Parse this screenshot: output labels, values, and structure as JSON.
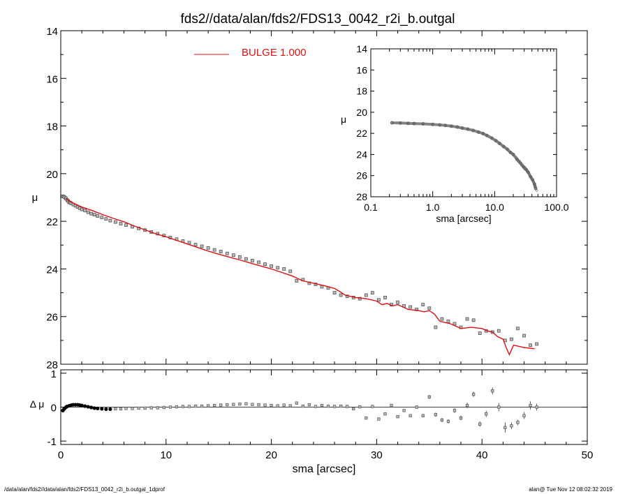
{
  "chart_data": [
    {
      "id": "main",
      "type": "scatter",
      "title": "fds2//data/alan/fds2/FDS13_0042_r2i_b.outgal",
      "xlabel": "",
      "ylabel": "μ",
      "xlim": [
        0,
        50
      ],
      "ylim": [
        28,
        14
      ],
      "y_inverted": true,
      "yticks": [
        14,
        16,
        18,
        20,
        22,
        24,
        26,
        28
      ],
      "legend": {
        "label": "BULGE  1.000",
        "placement": "top-center",
        "color": "#dd1111"
      },
      "series": [
        {
          "name": "data",
          "style": "square-markers",
          "x": [
            0.2,
            0.3,
            0.4,
            0.5,
            0.6,
            0.7,
            0.8,
            0.9,
            1.0,
            1.2,
            1.4,
            1.6,
            1.8,
            2.0,
            2.3,
            2.6,
            2.9,
            3.2,
            3.5,
            3.9,
            4.3,
            4.7,
            5.2,
            5.7,
            6.2,
            6.8,
            7.4,
            8.0,
            8.6,
            9.2,
            9.8,
            10.4,
            11.0,
            11.6,
            12.2,
            12.8,
            13.4,
            14.0,
            14.6,
            15.2,
            15.8,
            16.4,
            17.0,
            17.6,
            18.2,
            18.8,
            19.4,
            20.0,
            20.6,
            21.2,
            21.8,
            22.4,
            23.0,
            23.6,
            24.2,
            24.8,
            25.4,
            26.0,
            26.6,
            27.2,
            27.8,
            28.4,
            29.0,
            29.6,
            30.2,
            30.8,
            31.4,
            32.0,
            32.6,
            33.2,
            33.8,
            34.4,
            35.0,
            35.6,
            36.2,
            36.8,
            37.4,
            38.0,
            38.6,
            39.2,
            39.8,
            40.4,
            41.0,
            41.6,
            42.2,
            42.8,
            43.4,
            44.0,
            44.6,
            45.2
          ],
          "y": [
            20.95,
            20.97,
            21.0,
            21.05,
            21.1,
            21.15,
            21.2,
            21.22,
            21.25,
            21.3,
            21.35,
            21.4,
            21.45,
            21.5,
            21.55,
            21.62,
            21.68,
            21.72,
            21.78,
            21.84,
            21.9,
            21.97,
            22.03,
            22.1,
            22.16,
            22.23,
            22.3,
            22.37,
            22.45,
            22.52,
            22.6,
            22.68,
            22.75,
            22.83,
            22.9,
            22.98,
            23.05,
            23.12,
            23.2,
            23.27,
            23.35,
            23.42,
            23.5,
            23.58,
            23.65,
            23.72,
            23.8,
            23.88,
            23.95,
            24.0,
            24.1,
            24.5,
            24.45,
            24.6,
            24.65,
            24.75,
            24.8,
            25.0,
            25.1,
            25.15,
            25.2,
            25.25,
            25.1,
            25.0,
            25.3,
            25.2,
            25.5,
            25.4,
            25.55,
            25.6,
            25.7,
            25.5,
            25.65,
            26.45,
            26.1,
            26.2,
            26.3,
            26.45,
            26.1,
            26.15,
            26.7,
            26.6,
            26.65,
            26.6,
            27.0,
            26.95,
            26.5,
            26.8,
            27.2,
            27.15
          ]
        },
        {
          "name": "model",
          "style": "line",
          "color": "#dd1111",
          "x": [
            0.5,
            1.0,
            1.5,
            2.0,
            3.0,
            4.0,
            5.0,
            6.0,
            7.0,
            8.0,
            9.0,
            10.0,
            11.0,
            12.0,
            13.0,
            14.0,
            15.0,
            16.0,
            17.0,
            18.0,
            19.0,
            20.0,
            21.0,
            22.0,
            22.5,
            23.0,
            24.0,
            25.0,
            26.0,
            26.5,
            27.0,
            28.0,
            29.0,
            30.0,
            30.5,
            31.0,
            31.5,
            32.0,
            33.0,
            34.0,
            34.5,
            35.0,
            35.5,
            36.0,
            37.0,
            38.0,
            39.0,
            40.0,
            40.5,
            41.0,
            41.5,
            42.0,
            42.3,
            42.6,
            43.0,
            44.0,
            45.0
          ],
          "y": [
            21.05,
            21.2,
            21.3,
            21.4,
            21.55,
            21.72,
            21.88,
            22.02,
            22.2,
            22.36,
            22.52,
            22.65,
            22.8,
            22.95,
            23.1,
            23.25,
            23.38,
            23.5,
            23.62,
            23.75,
            23.88,
            24.0,
            24.15,
            24.3,
            24.4,
            24.5,
            24.6,
            24.7,
            24.82,
            24.95,
            25.1,
            25.2,
            25.25,
            25.35,
            25.5,
            25.45,
            25.55,
            25.5,
            25.7,
            25.75,
            25.8,
            25.75,
            25.9,
            26.2,
            26.3,
            26.5,
            26.45,
            26.5,
            26.6,
            26.65,
            26.85,
            26.95,
            27.3,
            27.6,
            27.2,
            27.3,
            27.35
          ]
        }
      ]
    },
    {
      "id": "inset",
      "type": "scatter",
      "title": "",
      "xlabel": "sma [arcsec]",
      "ylabel": "μ",
      "x_scale": "log",
      "xlim": [
        0.1,
        100.0
      ],
      "xticks": [
        0.1,
        1.0,
        10.0,
        100.0
      ],
      "xticklabels": [
        "0.1",
        "1.0",
        "10.0",
        "100.0"
      ],
      "ylim": [
        28,
        14
      ],
      "y_inverted": true,
      "yticks": [
        14,
        16,
        18,
        20,
        22,
        24,
        26,
        28
      ],
      "series": [
        {
          "name": "data",
          "style": "dense-markers",
          "x": [
            0.22,
            0.3,
            0.4,
            0.5,
            0.7,
            1.0,
            1.3,
            1.6,
            2.0,
            2.5,
            3.0,
            3.7,
            4.5,
            5.5,
            6.5,
            7.5,
            9,
            10.5,
            12,
            14,
            16,
            18,
            20,
            23,
            26,
            29,
            32,
            35,
            38,
            41,
            44,
            46
          ],
          "y": [
            21.0,
            21.02,
            21.05,
            21.07,
            21.1,
            21.15,
            21.2,
            21.25,
            21.32,
            21.4,
            21.5,
            21.6,
            21.72,
            21.88,
            22.02,
            22.2,
            22.45,
            22.7,
            22.95,
            23.25,
            23.5,
            23.8,
            24.0,
            24.45,
            24.8,
            25.15,
            25.4,
            25.7,
            26.1,
            26.4,
            26.8,
            27.2
          ]
        }
      ]
    },
    {
      "id": "residual",
      "type": "scatter",
      "title": "",
      "xlabel": "sma [arcsec]",
      "ylabel": "Δ μ",
      "xlim": [
        0,
        50
      ],
      "xticks": [
        0,
        10,
        20,
        30,
        40,
        50
      ],
      "ylim": [
        -1.1,
        1.1
      ],
      "yticks": [
        -1,
        0,
        1
      ],
      "zero_line": true,
      "series": [
        {
          "name": "residuals",
          "style": "square-markers-with-errorbars",
          "x": [
            0.2,
            0.3,
            0.4,
            0.5,
            0.6,
            0.8,
            1.0,
            1.2,
            1.4,
            1.6,
            1.8,
            2.0,
            2.3,
            2.6,
            2.9,
            3.2,
            3.5,
            3.9,
            4.3,
            4.7,
            5.2,
            5.7,
            6.2,
            6.8,
            7.4,
            8.0,
            8.6,
            9.2,
            9.8,
            10.4,
            11.0,
            11.6,
            12.2,
            12.8,
            13.4,
            14.0,
            14.6,
            15.2,
            15.8,
            16.4,
            17.0,
            17.6,
            18.2,
            18.8,
            19.4,
            20.0,
            20.6,
            21.2,
            21.8,
            22.4,
            23.0,
            23.6,
            24.2,
            24.8,
            25.4,
            26.0,
            26.6,
            27.2,
            27.8,
            28.4,
            29.0,
            29.6,
            30.2,
            30.8,
            31.4,
            32.0,
            32.6,
            33.2,
            33.8,
            34.4,
            35.0,
            35.6,
            36.2,
            36.8,
            37.4,
            38.0,
            38.6,
            39.2,
            39.8,
            40.4,
            41.0,
            41.6,
            42.2,
            42.8,
            43.4,
            44.0,
            44.6,
            45.2
          ],
          "y": [
            -0.1,
            -0.06,
            -0.03,
            0.0,
            0.02,
            0.04,
            0.06,
            0.07,
            0.07,
            0.07,
            0.06,
            0.05,
            0.03,
            0.01,
            -0.01,
            -0.03,
            -0.04,
            -0.05,
            -0.06,
            -0.06,
            -0.05,
            -0.05,
            -0.04,
            -0.04,
            -0.03,
            -0.03,
            -0.02,
            -0.02,
            -0.01,
            0.0,
            0.01,
            0.02,
            0.02,
            0.03,
            0.03,
            0.04,
            0.05,
            0.06,
            0.07,
            0.08,
            0.09,
            0.1,
            0.08,
            0.07,
            0.06,
            0.05,
            0.04,
            0.06,
            0.04,
            0.12,
            0.03,
            0.07,
            0.02,
            0.05,
            0.03,
            0.02,
            0.03,
            0.02,
            -0.05,
            0.01,
            -0.32,
            0.02,
            -0.35,
            -0.2,
            0.05,
            -0.28,
            -0.1,
            -0.25,
            0.0,
            -0.25,
            0.3,
            -0.22,
            -0.38,
            -0.42,
            -0.1,
            -0.32,
            0.05,
            0.38,
            -0.5,
            -0.2,
            0.48,
            0.0,
            -0.6,
            -0.55,
            -0.45,
            -0.25,
            0.05,
            0.0
          ],
          "err": [
            0.01,
            0.01,
            0.01,
            0.01,
            0.01,
            0.01,
            0.01,
            0.01,
            0.01,
            0.01,
            0.01,
            0.01,
            0.01,
            0.01,
            0.01,
            0.01,
            0.01,
            0.01,
            0.01,
            0.01,
            0.01,
            0.01,
            0.01,
            0.01,
            0.01,
            0.01,
            0.01,
            0.01,
            0.01,
            0.01,
            0.01,
            0.01,
            0.01,
            0.01,
            0.01,
            0.01,
            0.02,
            0.02,
            0.02,
            0.02,
            0.02,
            0.02,
            0.02,
            0.02,
            0.02,
            0.02,
            0.02,
            0.02,
            0.02,
            0.02,
            0.02,
            0.02,
            0.02,
            0.02,
            0.02,
            0.02,
            0.02,
            0.02,
            0.02,
            0.03,
            0.03,
            0.03,
            0.03,
            0.03,
            0.04,
            0.04,
            0.04,
            0.04,
            0.05,
            0.05,
            0.06,
            0.06,
            0.06,
            0.06,
            0.07,
            0.07,
            0.08,
            0.08,
            0.08,
            0.09,
            0.1,
            0.12,
            0.15,
            0.1,
            0.08,
            0.1,
            0.12,
            0.1
          ]
        }
      ]
    }
  ],
  "footer": {
    "left": "/data/alan/fds2//data/alan/fds2/FDS13_0042_r2i_b.outgal_1dprof",
    "right": "alan@  Tue Nov 12 08:02:32 2019"
  }
}
